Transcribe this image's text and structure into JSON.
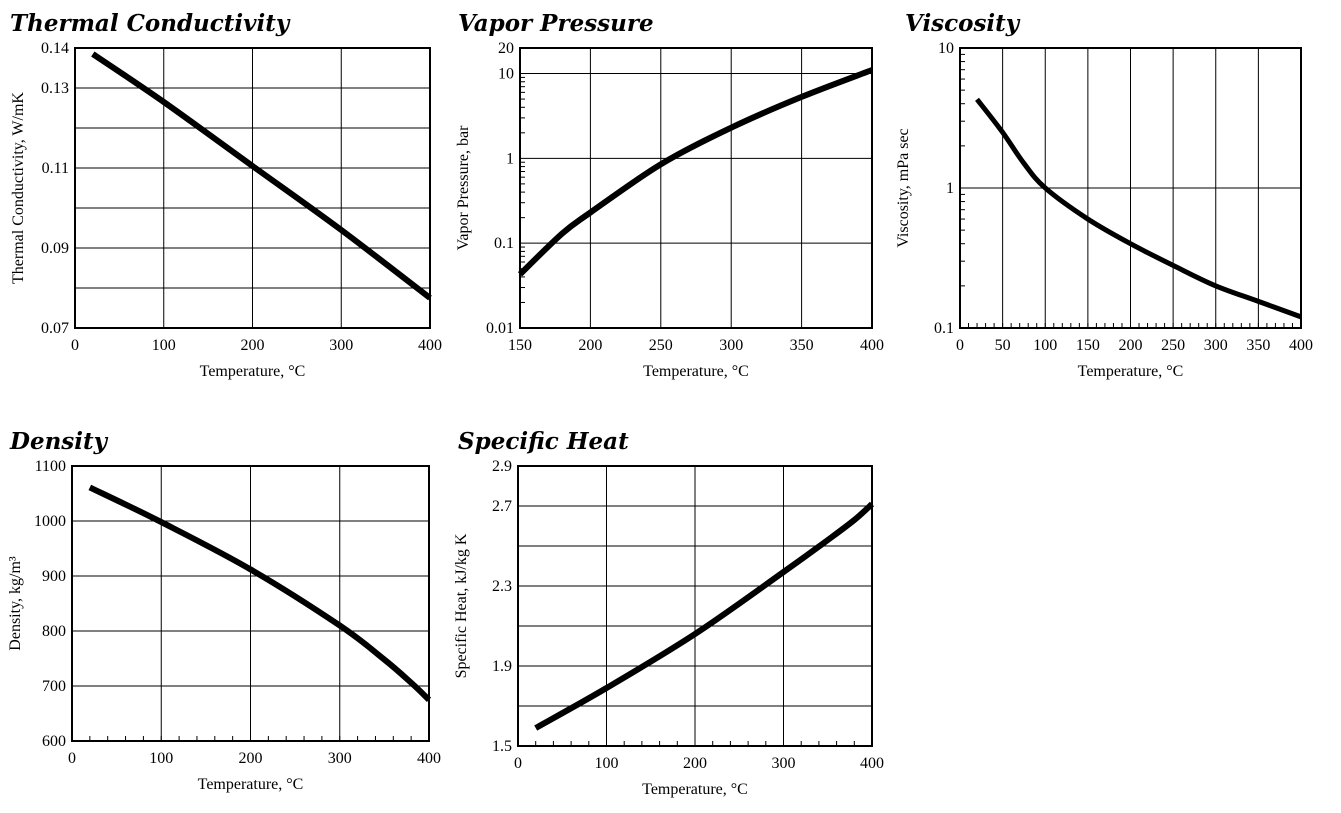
{
  "chart_data": [
    {
      "type": "line",
      "title": "Thermal Conductivity",
      "xlabel": "Temperature, °C",
      "ylabel": "Thermal Conductivity, W/mK",
      "xlim": [
        0,
        400
      ],
      "ylim": [
        0.07,
        0.14
      ],
      "yscale": "linear",
      "xticks": [
        0,
        100,
        200,
        300,
        400
      ],
      "yticks": [
        0.07,
        0.09,
        0.11,
        0.13,
        0.14
      ],
      "ygrid": [
        0.08,
        0.09,
        0.1,
        0.11,
        0.12,
        0.13
      ],
      "grid": true,
      "series": [
        {
          "x": [
            20,
            100,
            200,
            300,
            400
          ],
          "y": [
            0.1385,
            0.1265,
            0.1105,
            0.0945,
            0.0775
          ]
        }
      ]
    },
    {
      "type": "line",
      "title": "Vapor Pressure",
      "xlabel": "Temperature, °C",
      "ylabel": "Vapor Pressure, bar",
      "xlim": [
        150,
        400
      ],
      "ylim": [
        0.01,
        20
      ],
      "yscale": "log",
      "xticks": [
        150,
        200,
        250,
        300,
        350,
        400
      ],
      "yticks": [
        0.01,
        0.1,
        1,
        10,
        20
      ],
      "ytick_labels": [
        "0.01",
        "0.1",
        "1",
        "10",
        "20"
      ],
      "ygrid": [
        0.1,
        1,
        10
      ],
      "grid": true,
      "series": [
        {
          "x": [
            150,
            180,
            200,
            250,
            300,
            350,
            400
          ],
          "y": [
            0.043,
            0.13,
            0.23,
            0.85,
            2.3,
            5.3,
            11
          ]
        }
      ]
    },
    {
      "type": "line",
      "title": "Viscosity",
      "xlabel": "Temperature, °C",
      "ylabel": "Viscosity, mPa sec",
      "xlim": [
        0,
        400
      ],
      "ylim": [
        0.1,
        10
      ],
      "yscale": "log",
      "xticks": [
        0,
        50,
        100,
        150,
        200,
        250,
        300,
        350,
        400
      ],
      "yticks": [
        0.1,
        1,
        10
      ],
      "ytick_labels": [
        "0.1",
        "1",
        "10"
      ],
      "ygrid": [
        1
      ],
      "xgrid": [
        50,
        100,
        150,
        200,
        250,
        300,
        350
      ],
      "minor_xticks": true,
      "grid": true,
      "series": [
        {
          "x": [
            20,
            50,
            75,
            100,
            150,
            200,
            250,
            300,
            350,
            400
          ],
          "y": [
            4.3,
            2.5,
            1.5,
            1.0,
            0.6,
            0.4,
            0.28,
            0.2,
            0.155,
            0.12
          ]
        }
      ]
    },
    {
      "type": "line",
      "title": "Density",
      "xlabel": "Temperature, °C",
      "ylabel": "Density, kg/m³",
      "xlim": [
        0,
        400
      ],
      "ylim": [
        600,
        1100
      ],
      "yscale": "linear",
      "xticks": [
        0,
        100,
        200,
        300,
        400
      ],
      "yticks": [
        600,
        700,
        800,
        900,
        1000,
        1100
      ],
      "ygrid": [
        700,
        800,
        900,
        1000
      ],
      "minor_xticks": true,
      "grid": true,
      "series": [
        {
          "x": [
            20,
            100,
            200,
            300,
            350,
            380,
            400
          ],
          "y": [
            1061,
            998,
            912,
            810,
            748,
            706,
            675
          ]
        }
      ]
    },
    {
      "type": "line",
      "title": "Specific Heat",
      "xlabel": "Temperature, °C",
      "ylabel": "Specific Heat, kJ/kg K",
      "xlim": [
        0,
        400
      ],
      "ylim": [
        1.5,
        2.9
      ],
      "yscale": "linear",
      "xticks": [
        0,
        100,
        200,
        300,
        400
      ],
      "yticks": [
        1.5,
        1.9,
        2.3,
        2.7,
        2.9
      ],
      "ytick_labels": [
        "1.5",
        "1.9",
        "2.3",
        "2.7",
        "2.9"
      ],
      "ygrid": [
        1.7,
        1.9,
        2.1,
        2.3,
        2.5,
        2.7
      ],
      "minor_xticks": true,
      "grid": true,
      "series": [
        {
          "x": [
            20,
            100,
            200,
            300,
            350,
            380,
            400
          ],
          "y": [
            1.59,
            1.79,
            2.06,
            2.37,
            2.53,
            2.63,
            2.71
          ]
        }
      ]
    }
  ]
}
